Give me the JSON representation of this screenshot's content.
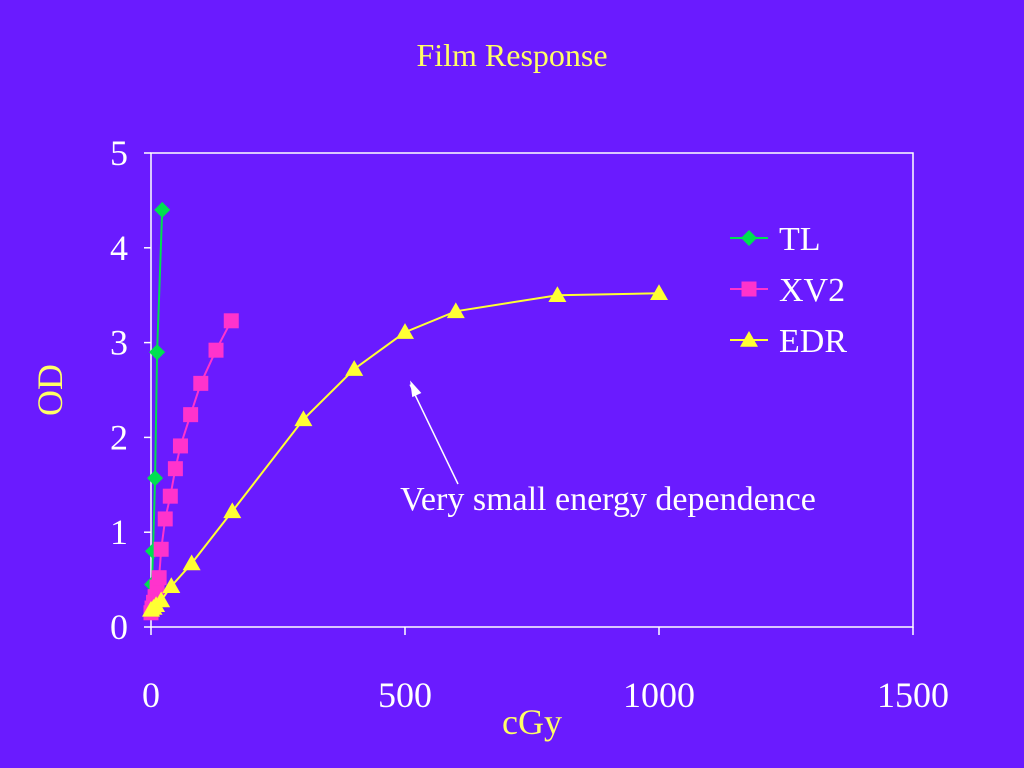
{
  "slide": {
    "background": "#6a1bff"
  },
  "chart_data": {
    "type": "line",
    "title": "Film Response",
    "xlabel": "cGy",
    "ylabel": "OD",
    "xlim": [
      0,
      1500
    ],
    "ylim": [
      0,
      5
    ],
    "xticks": [
      0,
      500,
      1000,
      1500
    ],
    "yticks": [
      0,
      1,
      2,
      3,
      4,
      5
    ],
    "grid": false,
    "legend_position": "top-right",
    "series": [
      {
        "name": "TL",
        "color": "#00e050",
        "marker": "diamond",
        "x": [
          1,
          2,
          4,
          8,
          12,
          22
        ],
        "y": [
          0.2,
          0.45,
          0.8,
          1.57,
          2.9,
          4.4
        ]
      },
      {
        "name": "XV2",
        "color": "#ff33cc",
        "marker": "square",
        "x": [
          0,
          2,
          5,
          8,
          12,
          16,
          20,
          28,
          38,
          48,
          58,
          78,
          98,
          128,
          158
        ],
        "y": [
          0.15,
          0.2,
          0.26,
          0.32,
          0.42,
          0.52,
          0.82,
          1.14,
          1.38,
          1.67,
          1.91,
          2.24,
          2.57,
          2.92,
          3.23
        ]
      },
      {
        "name": "EDR",
        "color": "#ffff33",
        "marker": "triangle",
        "x": [
          0,
          5,
          10,
          20,
          40,
          80,
          160,
          300,
          400,
          500,
          600,
          800,
          1000
        ],
        "y": [
          0.18,
          0.2,
          0.23,
          0.28,
          0.43,
          0.67,
          1.22,
          2.19,
          2.72,
          3.11,
          3.33,
          3.5,
          3.52
        ]
      }
    ],
    "annotations": [
      {
        "text": "Very small energy dependence",
        "arrow_to": {
          "x": 510,
          "y": 2.6
        }
      }
    ]
  }
}
